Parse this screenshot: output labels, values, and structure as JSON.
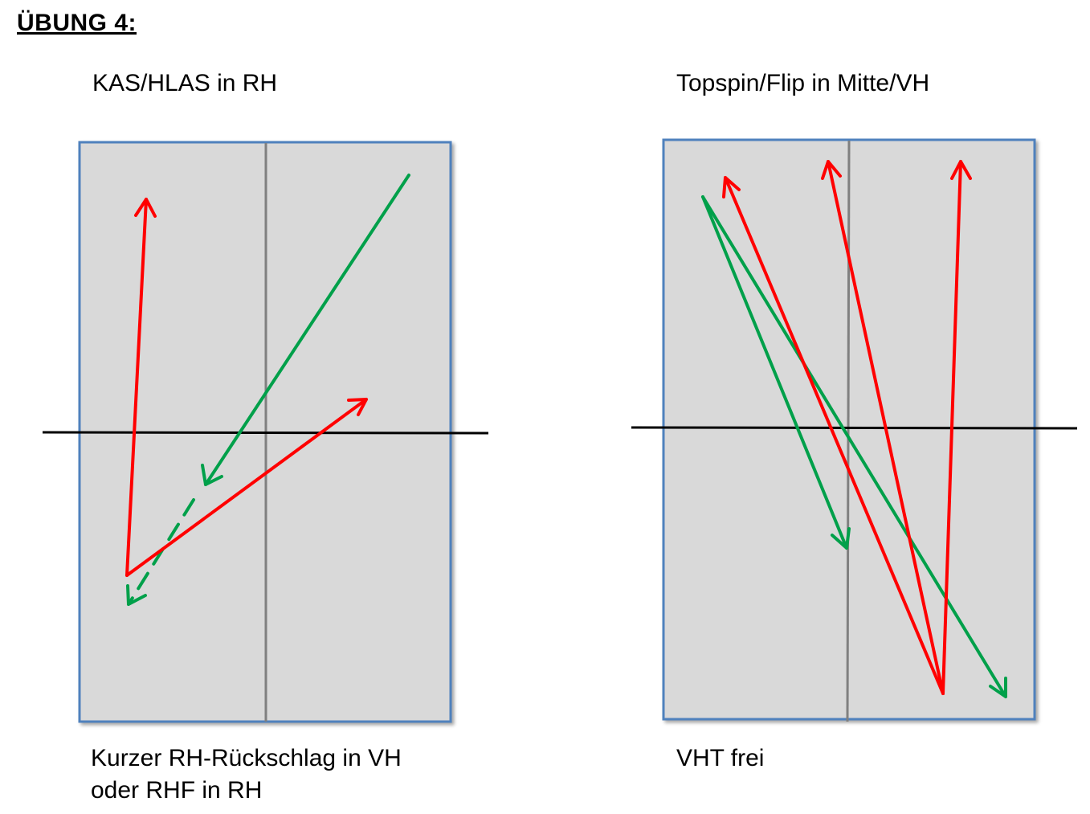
{
  "title": "ÜBUNG 4:",
  "left_panel": {
    "top_label": "KAS/HLAS in RH",
    "bottom_label_line1": "Kurzer RH-Rückschlag in VH",
    "bottom_label_line2": "oder RHF in RH"
  },
  "right_panel": {
    "top_label": "Topspin/Flip in Mitte/VH",
    "bottom_label": "VHT frei"
  },
  "colors": {
    "table_fill": "#d9d9d9",
    "table_border": "#4f81bd",
    "center_line": "#808080",
    "net": "#000000",
    "red_arrow": "#ff0000",
    "green_arrow": "#00a04a"
  }
}
